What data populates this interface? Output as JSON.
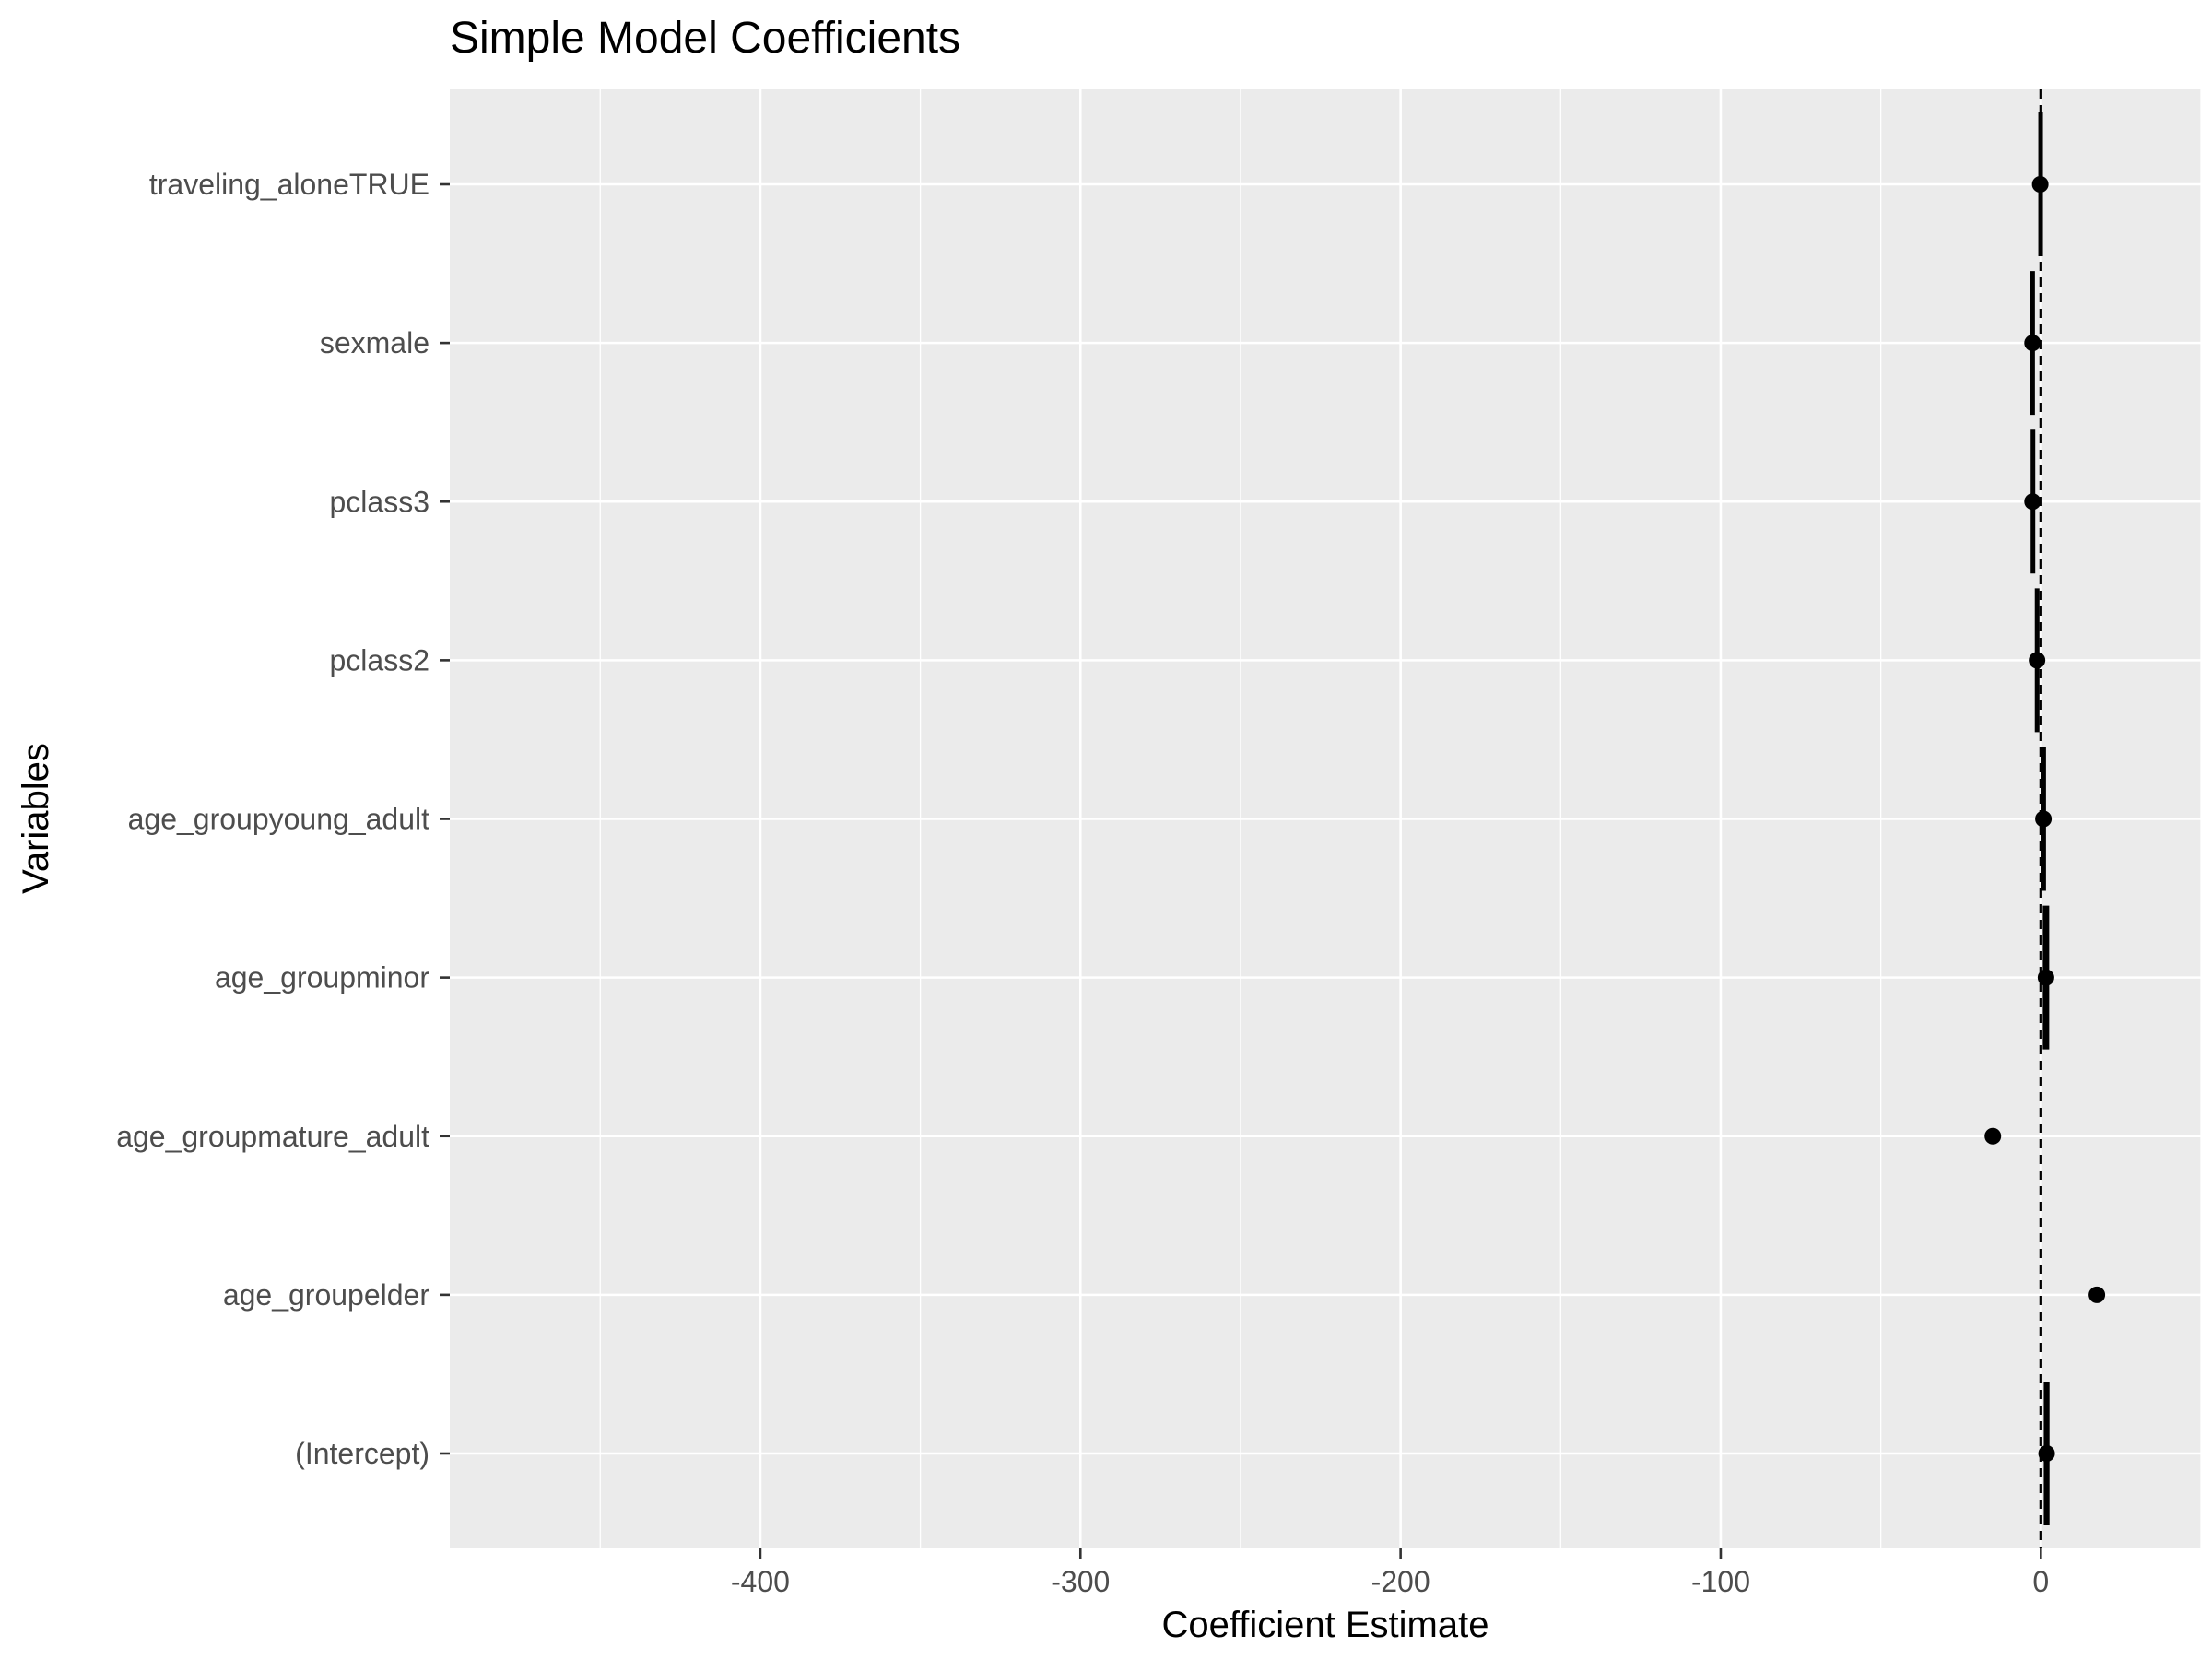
{
  "chart_data": {
    "type": "scatter",
    "title": "Simple Model Coefficients",
    "xlabel": "Coefficient Estimate",
    "ylabel": "Variables",
    "xlim": [
      -497,
      50
    ],
    "x_ticks": [
      -400,
      -300,
      -200,
      -100,
      0
    ],
    "x_tick_labels": [
      "-400",
      "-300",
      "-200",
      "-100",
      "0"
    ],
    "x_minor_ticks": [
      -450,
      -350,
      -250,
      -150,
      -50,
      50
    ],
    "reference_line": {
      "x": 0,
      "style": "dashed"
    },
    "grid": true,
    "legend": "none",
    "colors": {
      "panel": "#EBEBEB",
      "grid": "#FFFFFF",
      "points": "#000000",
      "axis_text": "#4D4D4D",
      "title_text": "#000000"
    },
    "categories": [
      "traveling_aloneTRUE",
      "sexmale",
      "pclass3",
      "pclass2",
      "age_groupyoung_adult",
      "age_groupminor",
      "age_groupmature_adult",
      "age_groupelder",
      "(Intercept)"
    ],
    "series": [
      {
        "values": [
          -0.2,
          -2.6,
          -2.6,
          -1.2,
          0.8,
          1.6,
          -15.0,
          17.5,
          1.8
        ],
        "ci_low": [
          -0.8,
          -3.3,
          -3.2,
          -1.9,
          0.0,
          0.6,
          null,
          null,
          0.9
        ],
        "ci_high": [
          0.4,
          -1.9,
          -2.0,
          -0.5,
          1.6,
          2.6,
          null,
          null,
          2.7
        ]
      }
    ]
  }
}
